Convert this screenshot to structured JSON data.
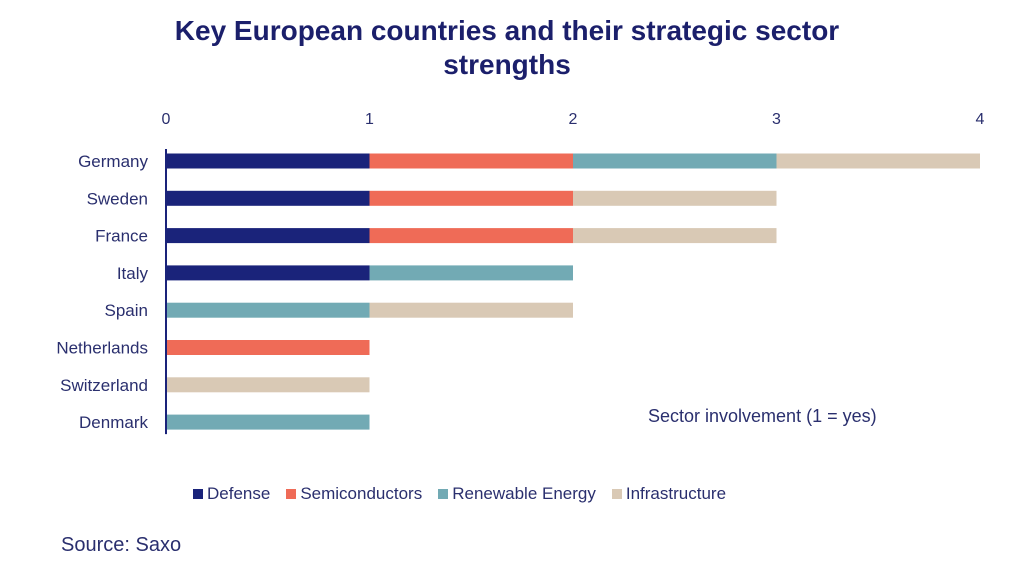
{
  "title_lines": [
    "Key European countries and their strategic sector",
    "strengths"
  ],
  "annotation": "Sector involvement (1 = yes)",
  "source": "Source: Saxo",
  "chart_data": {
    "type": "bar",
    "orientation": "horizontal",
    "stacked": true,
    "title": "Key European countries and their strategic sector strengths",
    "categories": [
      "Germany",
      "Sweden",
      "France",
      "Italy",
      "Spain",
      "Netherlands",
      "Switzerland",
      "Denmark"
    ],
    "series": [
      {
        "name": "Defense",
        "color": "#1a237a",
        "values": [
          1,
          1,
          1,
          1,
          0,
          0,
          0,
          0
        ]
      },
      {
        "name": "Semiconductors",
        "color": "#ef6b57",
        "values": [
          1,
          1,
          1,
          0,
          0,
          1,
          0,
          0
        ]
      },
      {
        "name": "Renewable Energy",
        "color": "#72aab4",
        "values": [
          1,
          0,
          0,
          1,
          1,
          0,
          0,
          1
        ]
      },
      {
        "name": "Infrastructure",
        "color": "#d9c9b5",
        "values": [
          1,
          1,
          1,
          0,
          1,
          0,
          1,
          0
        ]
      }
    ],
    "xlim": [
      0,
      4
    ],
    "xticks": [
      "0",
      "1",
      "2",
      "3",
      "4"
    ],
    "x_axis_position": "top",
    "grid": false,
    "legend_position": "bottom"
  }
}
